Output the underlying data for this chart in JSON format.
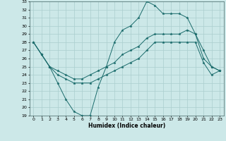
{
  "title": "",
  "xlabel": "Humidex (Indice chaleur)",
  "background_color": "#cce8e8",
  "grid_color": "#aacece",
  "line_color": "#1a6b6b",
  "xlim": [
    -0.5,
    23.5
  ],
  "ylim": [
    19,
    33
  ],
  "xticks": [
    0,
    1,
    2,
    3,
    4,
    5,
    6,
    7,
    8,
    9,
    10,
    11,
    12,
    13,
    14,
    15,
    16,
    17,
    18,
    19,
    20,
    21,
    22,
    23
  ],
  "yticks": [
    19,
    20,
    21,
    22,
    23,
    24,
    25,
    26,
    27,
    28,
    29,
    30,
    31,
    32,
    33
  ],
  "series": [
    {
      "x": [
        0,
        1,
        2,
        3,
        4,
        5,
        6,
        7,
        8,
        9,
        10,
        11,
        12,
        13,
        14,
        15,
        16,
        17,
        18,
        19,
        20,
        21,
        22,
        23
      ],
      "y": [
        28,
        26.5,
        25,
        23,
        21,
        19.5,
        19,
        19,
        22.5,
        25,
        28,
        29.5,
        30,
        31,
        33,
        32.5,
        31.5,
        31.5,
        31.5,
        31,
        29,
        26,
        25,
        24.5
      ]
    },
    {
      "x": [
        0,
        1,
        2,
        3,
        4,
        5,
        6,
        7,
        8,
        9,
        10,
        11,
        12,
        13,
        14,
        15,
        16,
        17,
        18,
        19,
        20,
        21,
        22,
        23
      ],
      "y": [
        28,
        26.5,
        25,
        24.5,
        24,
        23.5,
        23.5,
        24,
        24.5,
        25,
        25.5,
        26.5,
        27,
        27.5,
        28.5,
        29,
        29,
        29,
        29,
        29.5,
        29,
        27,
        25,
        24.5
      ]
    },
    {
      "x": [
        0,
        1,
        2,
        3,
        4,
        5,
        6,
        7,
        8,
        9,
        10,
        11,
        12,
        13,
        14,
        15,
        16,
        17,
        18,
        19,
        20,
        21,
        22,
        23
      ],
      "y": [
        28,
        26.5,
        25,
        24,
        23.5,
        23,
        23,
        23,
        23.5,
        24,
        24.5,
        25,
        25.5,
        26,
        27,
        28,
        28,
        28,
        28,
        28,
        28,
        25.5,
        24,
        24.5
      ]
    }
  ]
}
